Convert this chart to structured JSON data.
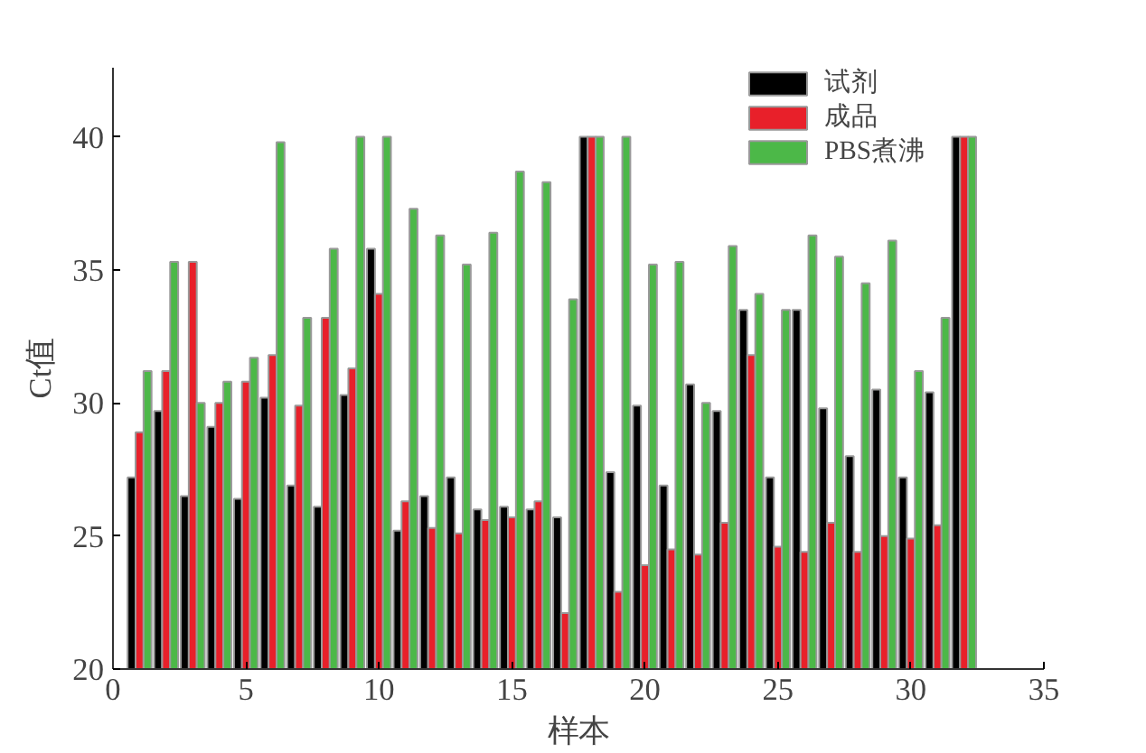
{
  "chart_data": {
    "type": "bar",
    "xlabel": "样本",
    "ylabel": "Ct值",
    "x": [
      1,
      2,
      3,
      4,
      5,
      6,
      7,
      8,
      9,
      10,
      11,
      12,
      13,
      14,
      15,
      16,
      17,
      18,
      19,
      20,
      21,
      22,
      23,
      24,
      25,
      26,
      27,
      28,
      29,
      30,
      31,
      32
    ],
    "series": [
      {
        "name": "试剂",
        "color": "#000000",
        "values": [
          27.2,
          29.7,
          26.5,
          29.1,
          26.4,
          30.2,
          26.9,
          26.1,
          30.3,
          35.8,
          25.2,
          26.5,
          27.2,
          26.0,
          26.1,
          26.0,
          25.7,
          40.0,
          27.4,
          29.9,
          26.9,
          30.7,
          29.7,
          33.5,
          27.2,
          33.5,
          29.8,
          28.0,
          30.5,
          27.2,
          30.4,
          40.0
        ]
      },
      {
        "name": "成品",
        "color": "#e8202a",
        "values": [
          28.9,
          31.2,
          35.3,
          30.0,
          30.8,
          31.8,
          29.9,
          33.2,
          31.3,
          34.1,
          26.3,
          25.3,
          25.1,
          25.6,
          25.7,
          26.3,
          22.1,
          40.0,
          22.9,
          23.9,
          24.5,
          24.3,
          25.5,
          31.8,
          24.6,
          24.4,
          25.5,
          24.4,
          25.0,
          24.9,
          25.4,
          40.0
        ]
      },
      {
        "name": "PBS煮沸",
        "color": "#4cb848",
        "values": [
          31.2,
          35.3,
          30.0,
          30.8,
          31.7,
          39.8,
          33.2,
          35.8,
          40.0,
          40.0,
          37.3,
          36.3,
          35.2,
          36.4,
          38.7,
          38.3,
          33.9,
          40.0,
          40.0,
          35.2,
          35.3,
          30.0,
          35.9,
          34.1,
          33.5,
          36.3,
          35.5,
          34.5,
          36.1,
          31.2,
          33.2,
          40.0
        ]
      }
    ],
    "xlim": [
      0,
      35
    ],
    "xticks": [
      0,
      5,
      10,
      15,
      20,
      25,
      30,
      35
    ],
    "ylim": [
      20,
      42.6
    ],
    "yticks": [
      20,
      25,
      30,
      35,
      40
    ],
    "grid": false,
    "legend": "top right"
  }
}
